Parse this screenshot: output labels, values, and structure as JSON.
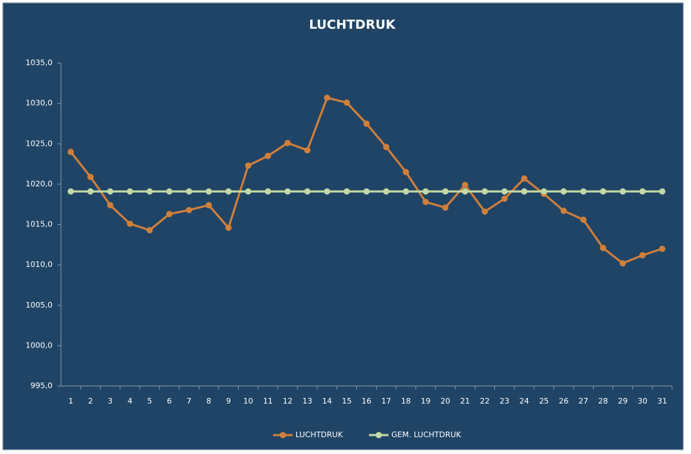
{
  "chart_data": {
    "type": "line",
    "title": "LUCHTDRUK",
    "categories": [
      "1",
      "2",
      "3",
      "4",
      "5",
      "6",
      "7",
      "8",
      "9",
      "10",
      "11",
      "12",
      "13",
      "14",
      "15",
      "16",
      "17",
      "18",
      "19",
      "20",
      "21",
      "22",
      "23",
      "24",
      "25",
      "26",
      "27",
      "28",
      "29",
      "30",
      "31"
    ],
    "series": [
      {
        "name": "LUCHTDRUK",
        "color": "#d07f3a",
        "values": [
          1024.0,
          1020.9,
          1017.4,
          1015.1,
          1014.3,
          1016.3,
          1016.8,
          1017.4,
          1014.6,
          1022.3,
          1023.5,
          1025.1,
          1024.2,
          1030.7,
          1030.1,
          1027.5,
          1024.6,
          1021.5,
          1017.8,
          1017.1,
          1019.9,
          1016.6,
          1018.2,
          1020.7,
          1018.8,
          1016.7,
          1015.6,
          1012.1,
          1010.2,
          1011.2,
          1012.0
        ]
      },
      {
        "name": "GEM. LUCHTDRUK",
        "color": "#c3d8a6",
        "values": [
          1019.1,
          1019.1,
          1019.1,
          1019.1,
          1019.1,
          1019.1,
          1019.1,
          1019.1,
          1019.1,
          1019.1,
          1019.1,
          1019.1,
          1019.1,
          1019.1,
          1019.1,
          1019.1,
          1019.1,
          1019.1,
          1019.1,
          1019.1,
          1019.1,
          1019.1,
          1019.1,
          1019.1,
          1019.1,
          1019.1,
          1019.1,
          1019.1,
          1019.1,
          1019.1,
          1019.1
        ]
      }
    ],
    "ylim": [
      995,
      1035
    ],
    "yticks": [
      {
        "value": 995,
        "label": "995,0"
      },
      {
        "value": 1000,
        "label": "1000,0"
      },
      {
        "value": 1005,
        "label": "1005,0"
      },
      {
        "value": 1010,
        "label": "1010,0"
      },
      {
        "value": 1015,
        "label": "1015,0"
      },
      {
        "value": 1020,
        "label": "1020,0"
      },
      {
        "value": 1025,
        "label": "1025,0"
      },
      {
        "value": 1030,
        "label": "1030,0"
      },
      {
        "value": 1035,
        "label": "1035,0"
      }
    ],
    "grid": false,
    "legend": "bottom"
  }
}
